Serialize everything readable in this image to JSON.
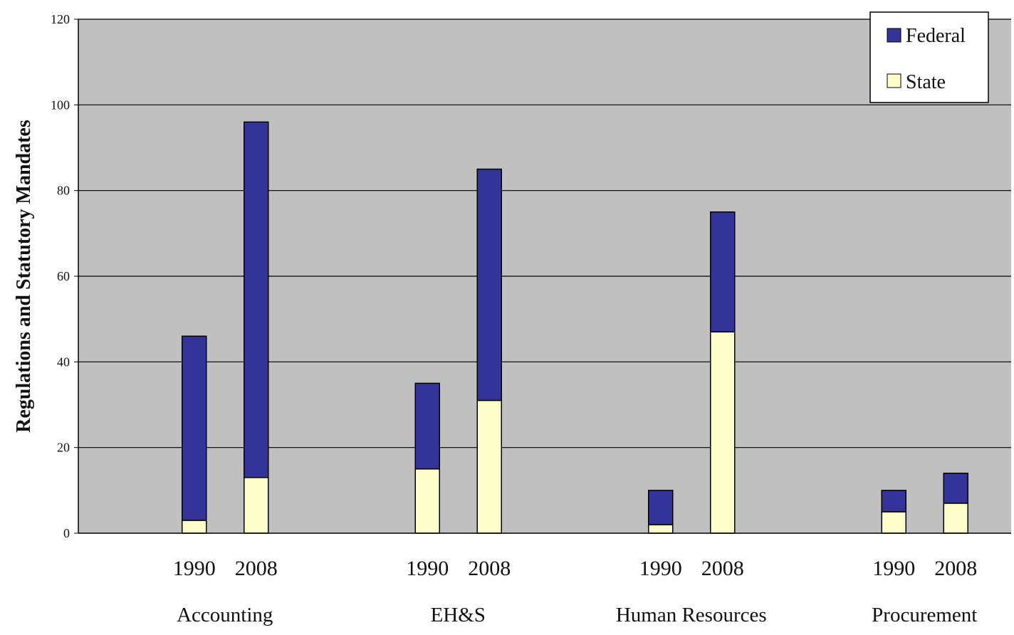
{
  "chart_data": {
    "type": "bar",
    "stacked": true,
    "title": "",
    "xlabel": "",
    "ylabel": "Regulations and Statutory Mandates",
    "ylim": [
      0,
      120
    ],
    "yticks": [
      0,
      20,
      40,
      60,
      80,
      100,
      120
    ],
    "grid": true,
    "legend_position": "top-right",
    "groups": [
      "Accounting",
      "EH&S",
      "Human Resources",
      "Procurement"
    ],
    "years": [
      "1990",
      "2008"
    ],
    "categories": [
      "Accounting 1990",
      "Accounting 2008",
      "EH&S 1990",
      "EH&S 2008",
      "Human Resources 1990",
      "Human Resources 2008",
      "Procurement 1990",
      "Procurement 2008"
    ],
    "series": [
      {
        "name": "State",
        "color": "#ffffcc",
        "values": [
          3,
          13,
          15,
          31,
          2,
          47,
          5,
          7
        ]
      },
      {
        "name": "Federal",
        "color": "#333399",
        "values": [
          43,
          83,
          20,
          54,
          8,
          28,
          5,
          7
        ]
      }
    ],
    "legend_order": [
      "Federal",
      "State"
    ],
    "plot_background": "#c0c0c0"
  }
}
